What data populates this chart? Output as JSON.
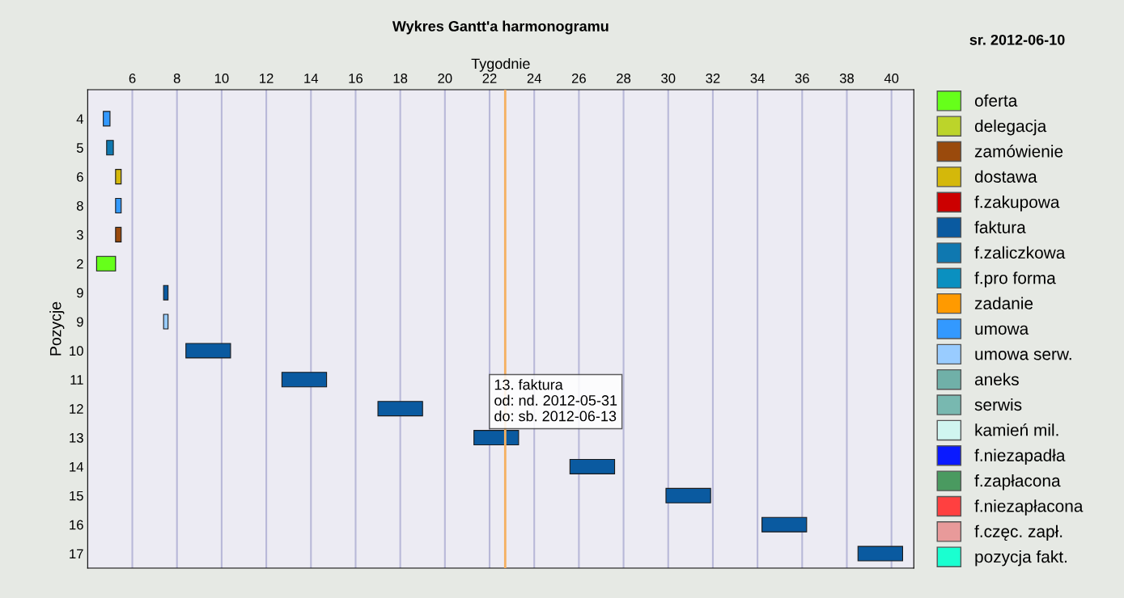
{
  "chart_data": {
    "type": "bar",
    "orientation": "horizontal",
    "title": "Wykres Gantt'a harmonogramu",
    "xlabel": "Tygodnie",
    "ylabel": "Pozycje",
    "categories": [
      "4",
      "5",
      "6",
      "8",
      "3",
      "2",
      "9",
      "9",
      "10",
      "11",
      "12",
      "13",
      "14",
      "15",
      "16",
      "17"
    ],
    "series": [
      {
        "name": "oferta",
        "color": "#66ff1a",
        "base": [
          null,
          null,
          null,
          null,
          null,
          4.4,
          null,
          null,
          null,
          null,
          null,
          null,
          null,
          null,
          null,
          null
        ],
        "values": [
          null,
          null,
          null,
          null,
          null,
          0.85,
          null,
          null,
          null,
          null,
          null,
          null,
          null,
          null,
          null,
          null
        ]
      },
      {
        "name": "delegacja",
        "color": "#bcd42a",
        "values": [
          null,
          null,
          null,
          null,
          null,
          null,
          null,
          null,
          null,
          null,
          null,
          null,
          null,
          null,
          null,
          null
        ]
      },
      {
        "name": "zamówienie",
        "color": "#9a4a0c",
        "base": [
          null,
          null,
          null,
          null,
          5.25,
          null,
          null,
          null,
          null,
          null,
          null,
          null,
          null,
          null,
          null,
          null
        ],
        "values": [
          null,
          null,
          null,
          null,
          0.25,
          null,
          null,
          null,
          null,
          null,
          null,
          null,
          null,
          null,
          null,
          null
        ]
      },
      {
        "name": "dostawa",
        "color": "#d4b80a",
        "base": [
          null,
          null,
          5.25,
          null,
          null,
          null,
          null,
          null,
          null,
          null,
          null,
          null,
          null,
          null,
          null,
          null
        ],
        "values": [
          null,
          null,
          0.25,
          null,
          null,
          null,
          null,
          null,
          null,
          null,
          null,
          null,
          null,
          null,
          null,
          null
        ]
      },
      {
        "name": "f.zakupowa",
        "color": "#cc0000",
        "values": [
          null,
          null,
          null,
          null,
          null,
          null,
          null,
          null,
          null,
          null,
          null,
          null,
          null,
          null,
          null,
          null
        ]
      },
      {
        "name": "faktura",
        "color": "#0a5aa0",
        "base": [
          null,
          null,
          null,
          null,
          null,
          null,
          7.4,
          null,
          8.4,
          12.7,
          17,
          21.3,
          25.6,
          29.9,
          34.2,
          38.5
        ],
        "values": [
          null,
          null,
          null,
          null,
          null,
          null,
          0.2,
          null,
          2,
          2,
          2,
          2,
          2,
          2,
          2,
          2
        ]
      },
      {
        "name": "f.zaliczkowa",
        "color": "#0f78b0",
        "base": [
          null,
          4.85,
          null,
          null,
          null,
          null,
          null,
          null,
          null,
          null,
          null,
          null,
          null,
          null,
          null,
          null
        ],
        "values": [
          null,
          0.3,
          null,
          null,
          null,
          null,
          null,
          null,
          null,
          null,
          null,
          null,
          null,
          null,
          null,
          null
        ]
      },
      {
        "name": "f.pro forma",
        "color": "#0a90c0",
        "values": [
          null,
          null,
          null,
          null,
          null,
          null,
          null,
          null,
          null,
          null,
          null,
          null,
          null,
          null,
          null,
          null
        ]
      },
      {
        "name": "zadanie",
        "color": "#ff9a00",
        "values": [
          null,
          null,
          null,
          null,
          null,
          null,
          null,
          null,
          null,
          null,
          null,
          null,
          null,
          null,
          null,
          null
        ]
      },
      {
        "name": "umowa",
        "color": "#3399ff",
        "base": [
          4.7,
          null,
          null,
          5.25,
          null,
          null,
          null,
          null,
          null,
          null,
          null,
          null,
          null,
          null,
          null,
          null
        ],
        "values": [
          0.3,
          null,
          null,
          0.25,
          null,
          null,
          null,
          null,
          null,
          null,
          null,
          null,
          null,
          null,
          null,
          null
        ]
      },
      {
        "name": "umowa serw.",
        "color": "#99ccff",
        "base": [
          null,
          null,
          null,
          null,
          null,
          null,
          null,
          7.4,
          null,
          null,
          null,
          null,
          null,
          null,
          null,
          null
        ],
        "values": [
          null,
          null,
          null,
          null,
          null,
          null,
          null,
          0.2,
          null,
          null,
          null,
          null,
          null,
          null,
          null,
          null
        ]
      },
      {
        "name": "aneks",
        "color": "#70b0a8",
        "values": [
          null,
          null,
          null,
          null,
          null,
          null,
          null,
          null,
          null,
          null,
          null,
          null,
          null,
          null,
          null,
          null
        ]
      },
      {
        "name": "serwis",
        "color": "#78b8b0",
        "values": [
          null,
          null,
          null,
          null,
          null,
          null,
          null,
          null,
          null,
          null,
          null,
          null,
          null,
          null,
          null,
          null
        ]
      },
      {
        "name": "kamień mil.",
        "color": "#d0f5f0",
        "values": [
          null,
          null,
          null,
          null,
          null,
          null,
          null,
          null,
          null,
          null,
          null,
          null,
          null,
          null,
          null,
          null
        ]
      },
      {
        "name": "f.niezapadła",
        "color": "#0a1aff",
        "values": [
          null,
          null,
          null,
          null,
          null,
          null,
          null,
          null,
          null,
          null,
          null,
          null,
          null,
          null,
          null,
          null
        ]
      },
      {
        "name": "f.zapłacona",
        "color": "#4a9a60",
        "values": [
          null,
          null,
          null,
          null,
          null,
          null,
          null,
          null,
          null,
          null,
          null,
          null,
          null,
          null,
          null,
          null
        ]
      },
      {
        "name": "f.niezapłacona",
        "color": "#ff4040",
        "values": [
          null,
          null,
          null,
          null,
          null,
          null,
          null,
          null,
          null,
          null,
          null,
          null,
          null,
          null,
          null,
          null
        ]
      },
      {
        "name": "f.częc. zapł.",
        "color": "#e89a9a",
        "values": [
          null,
          null,
          null,
          null,
          null,
          null,
          null,
          null,
          null,
          null,
          null,
          null,
          null,
          null,
          null,
          null
        ]
      },
      {
        "name": "pozycja fakt.",
        "color": "#1affd0",
        "values": [
          null,
          null,
          null,
          null,
          null,
          null,
          null,
          null,
          null,
          null,
          null,
          null,
          null,
          null,
          null,
          null
        ]
      }
    ],
    "xlim": [
      4,
      41
    ],
    "xticks": [
      6,
      8,
      10,
      12,
      14,
      16,
      18,
      20,
      22,
      24,
      26,
      28,
      30,
      32,
      34,
      36,
      38,
      40
    ],
    "grid": "x",
    "legend": "right",
    "ref_lines": [
      {
        "axis": "x",
        "value": 22.7,
        "label": null,
        "color": "#f5b060"
      }
    ],
    "annotations": [
      "sr. 2012-06-10",
      {
        "text": "13. faktura\nod: nd. 2012-05-31\ndo: sb. 2012-06-13",
        "x": 22.7,
        "y": "13"
      }
    ]
  }
}
